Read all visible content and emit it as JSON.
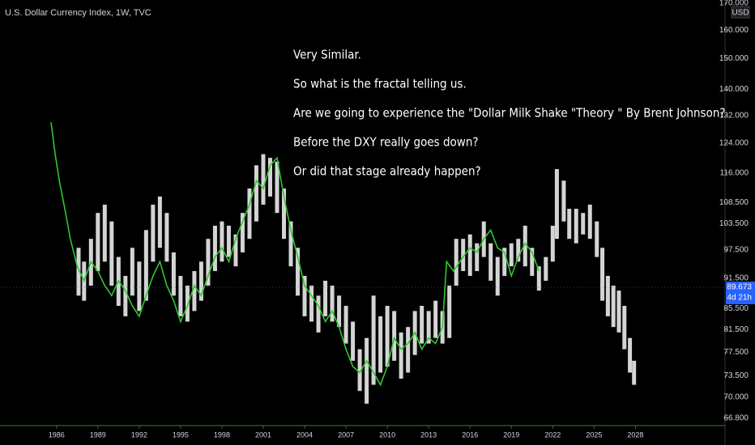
{
  "chart_data": {
    "type": "candles-with-fractal",
    "title": "U.S. Dollar Currency Index, 1W, TVC",
    "currency": "USD",
    "annotations": [
      "Very Similar.",
      "So what is the fractal telling us.",
      "Are we going to experience the \"Dollar Milk Shake \"Theory \" By Brent Johnson?",
      "Before the DXY really goes down?",
      "Or did that stage already happen?"
    ],
    "log_scale": true,
    "xlim": [
      1981.9,
      2034.5
    ],
    "xticks": [
      1986,
      1989,
      1992,
      1995,
      1998,
      2001,
      2004,
      2007,
      2010,
      2013,
      2016,
      2019,
      2022,
      2025,
      2028
    ],
    "ylim": [
      65.8,
      171.2
    ],
    "yticks": [
      {
        "value": 66.8,
        "label": "66.800"
      },
      {
        "value": 70,
        "label": "70.000"
      },
      {
        "value": 73.5,
        "label": "73.500"
      },
      {
        "value": 77.5,
        "label": "77.500"
      },
      {
        "value": 81.5,
        "label": "81.500"
      },
      {
        "value": 85.5,
        "label": "85.500"
      },
      {
        "value": 91.5,
        "label": "91.500"
      },
      {
        "value": 97.5,
        "label": "97.500"
      },
      {
        "value": 103.5,
        "label": "103.500"
      },
      {
        "value": 108.5,
        "label": "108.500"
      },
      {
        "value": 116,
        "label": "116.000"
      },
      {
        "value": 124,
        "label": "124.000"
      },
      {
        "value": 132,
        "label": "132.000"
      },
      {
        "value": 140,
        "label": "140.000"
      },
      {
        "value": 150,
        "label": "150.000"
      },
      {
        "value": 160,
        "label": "160.000"
      },
      {
        "value": 170,
        "label": "170.000"
      }
    ],
    "last_price": 89.673,
    "last_price_color": "#2962ff",
    "countdown": "4d 21h",
    "candles": {
      "color": "#d4d4d4",
      "x": [
        1987.6,
        1988.0,
        1988.5,
        1989.0,
        1989.5,
        1990.0,
        1990.5,
        1991.0,
        1991.5,
        1992.0,
        1992.5,
        1993.0,
        1993.5,
        1994.0,
        1994.5,
        1995.0,
        1995.5,
        1996.0,
        1996.5,
        1997.0,
        1997.5,
        1998.0,
        1998.5,
        1999.0,
        1999.5,
        2000.0,
        2000.5,
        2001.0,
        2001.5,
        2002.0,
        2002.5,
        2003.0,
        2003.5,
        2004.0,
        2004.5,
        2005.0,
        2005.5,
        2006.0,
        2006.5,
        2007.0,
        2007.5,
        2008.0,
        2008.5,
        2009.0,
        2009.5,
        2010.0,
        2010.5,
        2011.0,
        2011.5,
        2012.0,
        2012.5,
        2013.0,
        2013.5,
        2014.0,
        2014.5,
        2015.0,
        2015.5,
        2016.0,
        2016.5,
        2017.0,
        2017.5,
        2018.0,
        2018.5,
        2019.0,
        2019.5,
        2020.0,
        2020.5,
        2021.0,
        2021.5,
        2022.0,
        2022.3,
        2022.8,
        2023.2,
        2023.7,
        2024.2,
        2024.7,
        2025.2,
        2025.6,
        2026.0,
        2026.4,
        2026.8,
        2027.2,
        2027.6,
        2027.9
      ],
      "low": [
        88,
        87,
        90,
        93,
        95,
        90,
        86,
        84,
        88,
        85,
        87,
        95,
        98,
        95,
        88,
        84,
        83,
        85,
        87,
        90,
        93,
        95,
        96,
        94,
        97,
        100,
        104,
        108,
        110,
        106,
        100,
        94,
        88,
        84,
        83,
        81,
        84,
        83,
        82,
        79,
        76,
        71,
        69,
        72,
        74,
        75,
        76,
        73,
        74,
        77,
        79,
        79,
        80,
        79,
        80,
        90,
        93,
        92,
        93,
        96,
        91,
        88,
        92,
        94,
        95,
        94,
        92,
        89,
        91,
        95,
        100,
        104,
        100,
        99,
        101,
        100,
        96,
        87,
        84,
        82,
        81,
        78,
        74,
        72
      ],
      "high": [
        98,
        95,
        100,
        106,
        108,
        104,
        96,
        92,
        98,
        95,
        102,
        108,
        110,
        106,
        97,
        92,
        90,
        93,
        95,
        100,
        103,
        104,
        103,
        101,
        106,
        112,
        118,
        121,
        120,
        119,
        112,
        104,
        98,
        92,
        90,
        88,
        91,
        90,
        88,
        86,
        83,
        78,
        80,
        88,
        84,
        86,
        85,
        81,
        82,
        85,
        86,
        85,
        87,
        85,
        90,
        100,
        100,
        101,
        99,
        104,
        99,
        96,
        98,
        99,
        100,
        103,
        98,
        94,
        96,
        103,
        117,
        114,
        107,
        107,
        106,
        108,
        104,
        98,
        92,
        90,
        89,
        86,
        80,
        76
      ]
    },
    "fractal": {
      "color": "#2fc72f",
      "x": [
        1985.6,
        1985.9,
        1986.2,
        1986.6,
        1987.0,
        1987.5,
        1988.0,
        1988.5,
        1989.0,
        1989.5,
        1990.0,
        1990.5,
        1991.0,
        1991.5,
        1992.0,
        1992.5,
        1993.0,
        1993.5,
        1994.0,
        1994.5,
        1995.0,
        1995.5,
        1996.0,
        1996.5,
        1997.0,
        1997.5,
        1998.0,
        1998.5,
        1999.0,
        1999.5,
        2000.0,
        2000.5,
        2001.0,
        2001.5,
        2002.0,
        2002.5,
        2003.0,
        2003.5,
        2004.0,
        2004.5,
        2005.0,
        2005.5,
        2006.0,
        2006.5,
        2007.0,
        2007.5,
        2008.0,
        2008.5,
        2009.0,
        2009.5,
        2010.0,
        2010.5,
        2011.0,
        2011.5,
        2012.0,
        2012.5,
        2013.0,
        2013.5,
        2014.0,
        2014.3,
        2014.8,
        2015.5,
        2016.0,
        2016.5,
        2017.0,
        2017.5,
        2018.0,
        2018.5,
        2019.0,
        2019.5,
        2020.0,
        2020.5,
        2021.0
      ],
      "values": [
        130,
        121,
        114,
        107,
        100,
        94,
        91,
        95,
        93,
        90,
        88,
        91,
        89,
        86,
        84,
        88,
        92,
        95,
        90,
        87,
        83,
        86,
        90,
        88,
        92,
        96,
        98,
        95,
        100,
        104,
        108,
        114,
        112,
        118,
        120,
        110,
        102,
        96,
        90,
        88,
        86,
        83,
        85,
        82,
        78,
        75,
        74,
        76,
        74,
        72,
        75,
        80,
        78,
        79,
        81,
        78,
        80,
        79,
        82,
        95,
        93,
        96,
        98,
        97,
        100,
        102,
        98,
        97,
        92,
        96,
        99,
        97,
        93
      ]
    }
  }
}
